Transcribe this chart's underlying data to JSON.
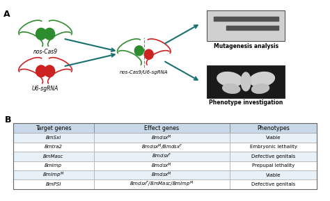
{
  "panel_a_label": "A",
  "panel_b_label": "B",
  "label1": "nos-Cas9",
  "label2": "U6-sgRNA",
  "label3": "nos-Cas9/U6-sgRNA",
  "label4": "Mutagenesis analysis",
  "label5": "Phenotype investigation",
  "table_headers": [
    "Target genes",
    "Effect genes",
    "Phenotypes"
  ],
  "table_rows": [
    [
      "BmSxl",
      "Bmdsx^M",
      "Viable"
    ],
    [
      "Bmtra2",
      "Bmdsx^M/Bmdsx^F",
      "Embryonic lethality"
    ],
    [
      "BmMasc",
      "Bmdsx^F",
      "Defective genitals"
    ],
    [
      "BmImp",
      "Bmdsx^M",
      "Prepupal lethality"
    ],
    [
      "BmImp^M",
      "Bmdsx^M",
      "Viable"
    ],
    [
      "BmPSI",
      "Bmdsx^F/BmMasc/BmImp^M",
      "Defective genitals"
    ]
  ],
  "header_bg": "#c8d8e8",
  "row_bg_odd": "#e8f0f8",
  "row_bg_even": "#ffffff",
  "teal_color": "#1a7070",
  "green_color": "#2d8c2d",
  "red_color": "#cc2222"
}
